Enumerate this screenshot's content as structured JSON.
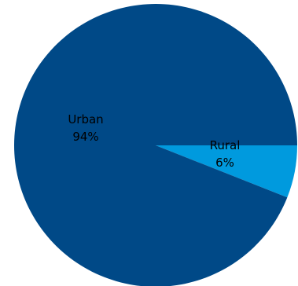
{
  "chart_data": {
    "type": "pie",
    "title": "",
    "start_angle_deg": 0,
    "direction": "clockwise",
    "legend": "none",
    "slices": [
      {
        "label": "Rural",
        "value": 6,
        "value_label": "6%",
        "color": "#009ADE"
      },
      {
        "label": "Urban",
        "value": 94,
        "value_label": "94%",
        "color": "#004987"
      }
    ]
  }
}
